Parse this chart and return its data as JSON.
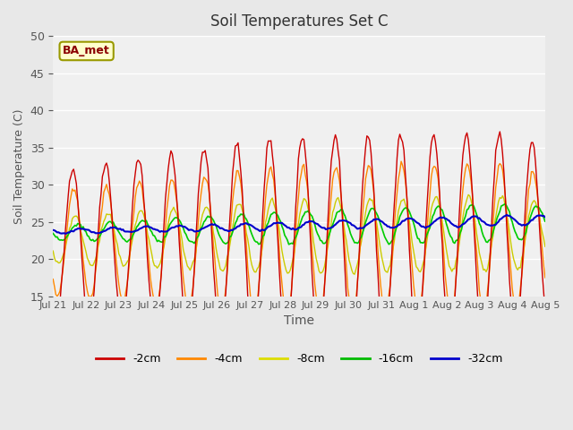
{
  "title": "Soil Temperatures Set C",
  "xlabel": "Time",
  "ylabel": "Soil Temperature (C)",
  "ylim": [
    15,
    50
  ],
  "yticks": [
    15,
    20,
    25,
    30,
    35,
    40,
    45,
    50
  ],
  "annotation": "BA_met",
  "colors": {
    "-2cm": "#cc0000",
    "-4cm": "#ff8800",
    "-8cm": "#cccc00",
    "-16cm": "#00cc00",
    "-32cm": "#0000cc"
  },
  "legend_colors": {
    "-2cm": "#cc0000",
    "-4cm": "#ff8800",
    "-8cm": "#dddd00",
    "-16cm": "#00bb00",
    "-32cm": "#0000cc"
  },
  "background_color": "#e8e8e8",
  "axes_background": "#f0f0f0",
  "n_days": 15,
  "start_day": 21,
  "tick_labels": [
    "Jul 21",
    "Jul 22",
    "Jul 23",
    "Jul 24",
    "Jul 25",
    "Jul 26",
    "Jul 27",
    "Jul 28",
    "Jul 29",
    "Jul 30",
    "Jul 31",
    "Aug 1",
    "Aug 2",
    "Aug 3",
    "Aug 4",
    "Aug 5"
  ]
}
